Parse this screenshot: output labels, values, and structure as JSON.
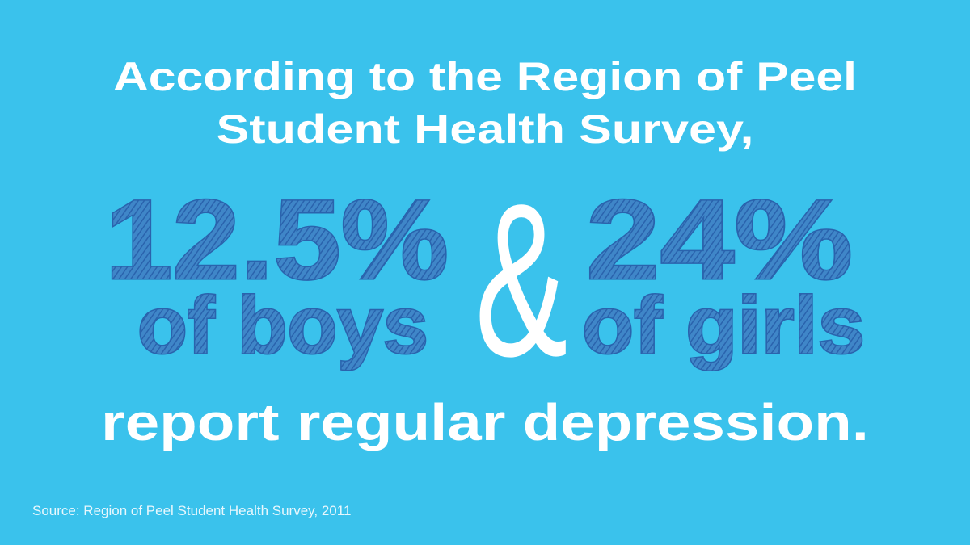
{
  "headline": {
    "lines": [
      "According to the Region of Peel",
      "Student Health Survey,"
    ]
  },
  "stats": [
    {
      "value": "12.5%",
      "label": "of boys"
    },
    {
      "value": "24%",
      "label": "of girls"
    }
  ],
  "connector": "&",
  "conclusion": "report regular depression.",
  "source": "Source: Region of Peel Student Health Survey, 2011"
}
